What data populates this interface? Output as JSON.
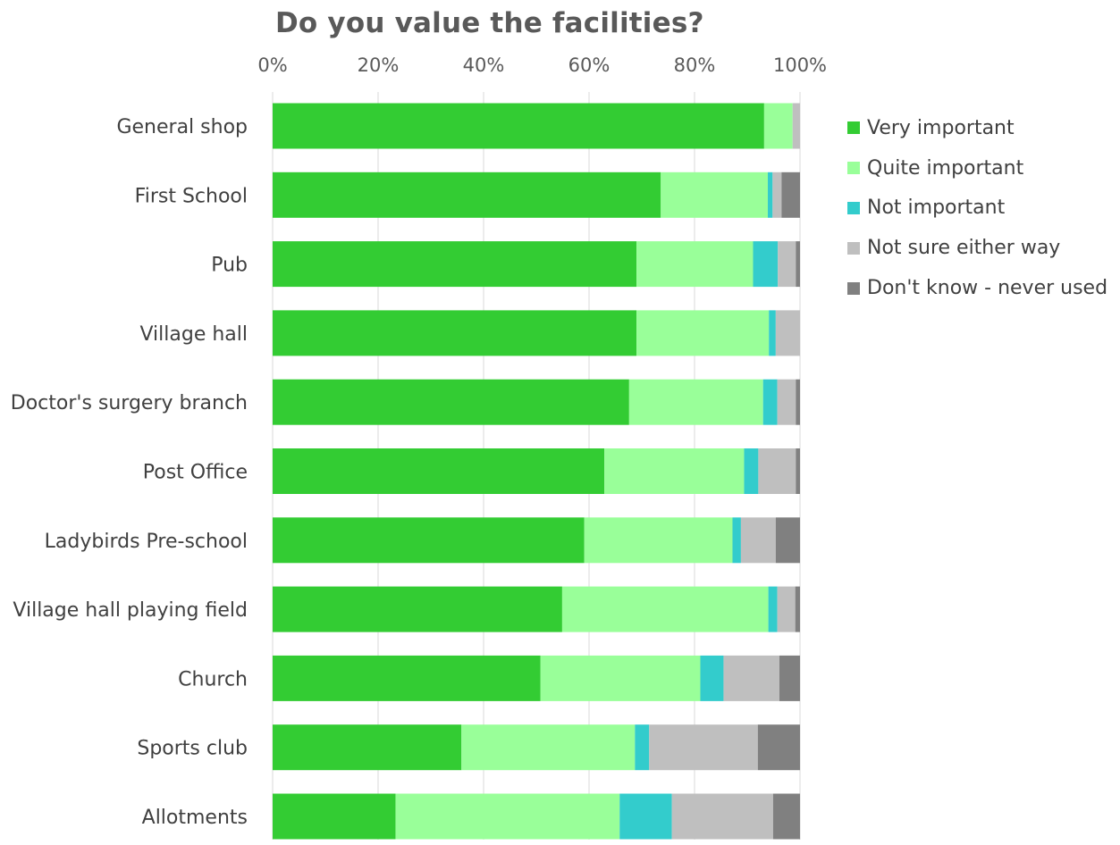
{
  "chart_data": {
    "type": "bar",
    "orientation": "horizontal",
    "stacked": "100%",
    "title": "Do you value the facilities?",
    "x_tick_labels": [
      "0%",
      "20%",
      "40%",
      "60%",
      "80%",
      "100%"
    ],
    "xlim": [
      0,
      100
    ],
    "x_axis_position": "top",
    "grid": true,
    "legend_position": "right",
    "categories": [
      "General shop",
      "First School",
      "Pub",
      "Village hall",
      "Doctor's surgery branch",
      "Post Office",
      "Ladybirds Pre-school",
      "Village hall playing field",
      "Church",
      "Sports club",
      "Allotments"
    ],
    "series": [
      {
        "name": "Very important",
        "color": "#33CC33",
        "values": [
          93.2,
          73.6,
          69.0,
          69.0,
          67.6,
          62.9,
          59.1,
          54.9,
          50.8,
          35.8,
          23.3
        ]
      },
      {
        "name": "Quite important",
        "color": "#99FF99",
        "values": [
          5.4,
          20.3,
          22.1,
          25.1,
          25.4,
          26.5,
          28.1,
          39.1,
          30.3,
          32.9,
          42.5
        ]
      },
      {
        "name": "Not important",
        "color": "#33CCCC",
        "values": [
          0.0,
          0.9,
          4.7,
          1.3,
          2.7,
          2.7,
          1.6,
          1.7,
          4.4,
          2.7,
          9.9
        ]
      },
      {
        "name": "Not sure either way",
        "color": "#BFBFBF",
        "values": [
          1.4,
          1.7,
          3.4,
          4.6,
          3.5,
          7.1,
          6.6,
          3.4,
          10.6,
          20.6,
          19.2
        ]
      },
      {
        "name": "Don't know - never used",
        "color": "#808080",
        "values": [
          0.0,
          3.5,
          0.8,
          0.0,
          0.8,
          0.8,
          4.6,
          0.9,
          3.9,
          8.0,
          5.1
        ]
      }
    ]
  }
}
